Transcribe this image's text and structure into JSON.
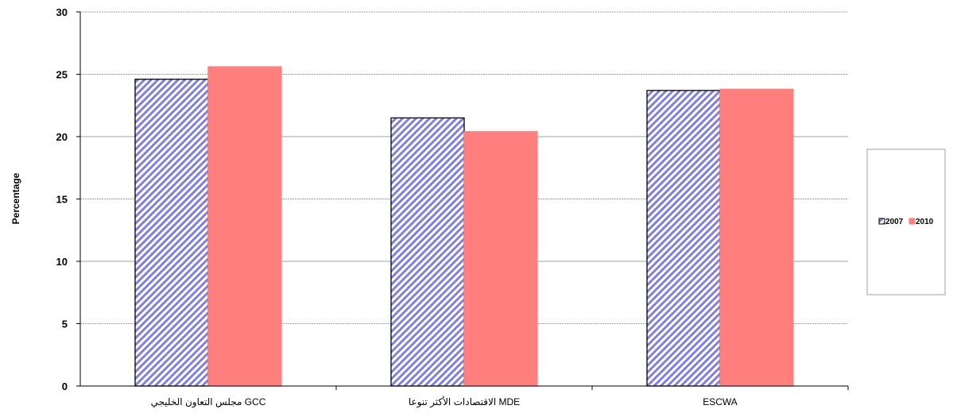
{
  "chart_data": {
    "type": "bar",
    "ylabel": "Percentage",
    "ylim": [
      0,
      30
    ],
    "yticks": [
      0,
      5,
      10,
      15,
      20,
      25,
      30
    ],
    "grid": true,
    "legend_position": "right",
    "categories": [
      "مجلس التعاون الخليجي GCC",
      "الاقتصادات الأكثر تنوعا MDE",
      "ESCWA"
    ],
    "series": [
      {
        "name": "2007",
        "values": [
          24.6,
          21.5,
          23.7
        ],
        "color": "#9999ff",
        "pattern": "diagonal-hatch"
      },
      {
        "name": "2010",
        "values": [
          25.6,
          20.4,
          23.8
        ],
        "color": "#ff7f7f",
        "pattern": "solid"
      }
    ]
  }
}
